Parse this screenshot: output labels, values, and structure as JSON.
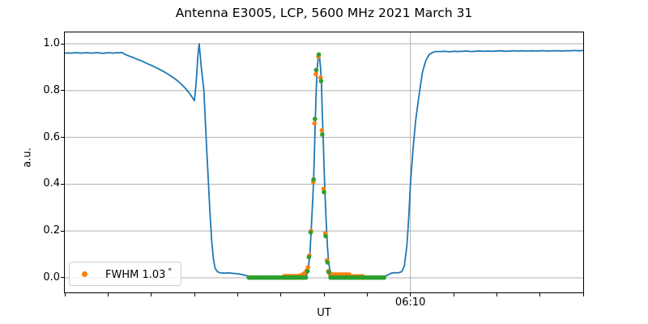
{
  "title": "Antenna E3005, LCP, 5600 MHz 2021 March 31",
  "xlabel": "UT",
  "ylabel": "a.u.",
  "legend": {
    "label": "FWHM 1.03",
    "degree": "°",
    "marker_color": "#ff7f0e"
  },
  "colors": {
    "signal_line": "#1f77b4",
    "measured_scatter": "#ff7f0e",
    "fit_scatter": "#2ca02c",
    "grid": "#b0b0b0",
    "spine": "#000000"
  },
  "chart_data": {
    "type": "line",
    "title": "Antenna E3005, LCP, 5600 MHz 2021 March 31",
    "xlabel": "UT",
    "ylabel": "a.u.",
    "x_axis": {
      "unit": "minutes after 05:30 UT",
      "range": [
        0,
        60
      ],
      "minor_tick_step": 5,
      "major_ticks": [
        {
          "x": 40,
          "label": "06:10"
        }
      ],
      "grid_on_major_only": true
    },
    "y_axis": {
      "ticks": [
        0.0,
        0.2,
        0.4,
        0.6,
        0.8,
        1.0
      ],
      "range": [
        -0.0625,
        1.0486
      ],
      "grid": true
    },
    "series": [
      {
        "name": "signal",
        "type": "line",
        "color": "#1f77b4",
        "width": 1.8,
        "points": [
          [
            0,
            0.96
          ],
          [
            0.4,
            0.961
          ],
          [
            0.8,
            0.96
          ],
          [
            1.2,
            0.962
          ],
          [
            1.6,
            0.961
          ],
          [
            2.0,
            0.96
          ],
          [
            2.4,
            0.962
          ],
          [
            2.8,
            0.961
          ],
          [
            3.2,
            0.96
          ],
          [
            3.6,
            0.962
          ],
          [
            4.0,
            0.961
          ],
          [
            4.4,
            0.959
          ],
          [
            4.8,
            0.961
          ],
          [
            5.2,
            0.962
          ],
          [
            5.6,
            0.96
          ],
          [
            6.0,
            0.962
          ],
          [
            6.3,
            0.961
          ],
          [
            6.6,
            0.963
          ],
          [
            7.0,
            0.954
          ],
          [
            7.5,
            0.947
          ],
          [
            8.0,
            0.94
          ],
          [
            8.5,
            0.932
          ],
          [
            9.0,
            0.925
          ],
          [
            9.5,
            0.916
          ],
          [
            10.0,
            0.908
          ],
          [
            10.5,
            0.899
          ],
          [
            11.0,
            0.89
          ],
          [
            11.5,
            0.88
          ],
          [
            12.0,
            0.869
          ],
          [
            12.5,
            0.857
          ],
          [
            13.0,
            0.843
          ],
          [
            13.5,
            0.827
          ],
          [
            14.0,
            0.808
          ],
          [
            14.5,
            0.785
          ],
          [
            15.0,
            0.757
          ],
          [
            15.2,
            0.83
          ],
          [
            15.4,
            0.95
          ],
          [
            15.55,
            1.0
          ],
          [
            15.8,
            0.9
          ],
          [
            16.1,
            0.8
          ],
          [
            16.4,
            0.57
          ],
          [
            16.6,
            0.42
          ],
          [
            16.8,
            0.28
          ],
          [
            17.0,
            0.16
          ],
          [
            17.2,
            0.08
          ],
          [
            17.4,
            0.04
          ],
          [
            17.7,
            0.025
          ],
          [
            18.0,
            0.021
          ],
          [
            18.5,
            0.02
          ],
          [
            19.0,
            0.021
          ],
          [
            19.5,
            0.019
          ],
          [
            20.0,
            0.017
          ],
          [
            20.5,
            0.014
          ],
          [
            21.0,
            0.009
          ],
          [
            21.4,
            0.005
          ],
          [
            22.0,
            0.004
          ],
          [
            23.0,
            0.004
          ],
          [
            24.0,
            0.004
          ],
          [
            25.0,
            0.004
          ],
          [
            26.0,
            0.005
          ],
          [
            27.0,
            0.005
          ],
          [
            27.6,
            0.007
          ],
          [
            28.0,
            0.012
          ],
          [
            28.2,
            0.05
          ],
          [
            28.35,
            0.09
          ],
          [
            28.5,
            0.19
          ],
          [
            28.65,
            0.3
          ],
          [
            28.8,
            0.42
          ],
          [
            28.9,
            0.55
          ],
          [
            29.0,
            0.68
          ],
          [
            29.1,
            0.8
          ],
          [
            29.2,
            0.89
          ],
          [
            29.35,
            0.95
          ],
          [
            29.45,
            0.955
          ],
          [
            29.6,
            0.9
          ],
          [
            29.7,
            0.84
          ],
          [
            29.8,
            0.7
          ],
          [
            29.9,
            0.61
          ],
          [
            30.0,
            0.48
          ],
          [
            30.1,
            0.37
          ],
          [
            30.25,
            0.24
          ],
          [
            30.4,
            0.13
          ],
          [
            30.55,
            0.06
          ],
          [
            30.7,
            0.03
          ],
          [
            30.9,
            0.015
          ],
          [
            31.5,
            0.01
          ],
          [
            32.5,
            0.008
          ],
          [
            33.5,
            0.007
          ],
          [
            34.5,
            0.006
          ],
          [
            35.5,
            0.005
          ],
          [
            36.5,
            0.005
          ],
          [
            37.0,
            0.006
          ],
          [
            37.4,
            0.012
          ],
          [
            37.8,
            0.02
          ],
          [
            38.2,
            0.022
          ],
          [
            38.6,
            0.021
          ],
          [
            39.0,
            0.026
          ],
          [
            39.3,
            0.05
          ],
          [
            39.6,
            0.14
          ],
          [
            39.8,
            0.25
          ],
          [
            40.0,
            0.4
          ],
          [
            40.3,
            0.55
          ],
          [
            40.6,
            0.67
          ],
          [
            41.0,
            0.78
          ],
          [
            41.4,
            0.88
          ],
          [
            41.8,
            0.93
          ],
          [
            42.2,
            0.955
          ],
          [
            42.6,
            0.963
          ],
          [
            42.9,
            0.967
          ],
          [
            43.5,
            0.967
          ],
          [
            44.0,
            0.968
          ],
          [
            44.5,
            0.966
          ],
          [
            45.0,
            0.968
          ],
          [
            45.5,
            0.967
          ],
          [
            46.0,
            0.968
          ],
          [
            46.5,
            0.969
          ],
          [
            47.0,
            0.967
          ],
          [
            47.5,
            0.968
          ],
          [
            48.0,
            0.969
          ],
          [
            48.5,
            0.968
          ],
          [
            49.0,
            0.969
          ],
          [
            49.5,
            0.968
          ],
          [
            50.0,
            0.969
          ],
          [
            50.5,
            0.97
          ],
          [
            51.0,
            0.968
          ],
          [
            51.5,
            0.969
          ],
          [
            52.0,
            0.97
          ],
          [
            52.5,
            0.969
          ],
          [
            53.0,
            0.97
          ],
          [
            53.5,
            0.969
          ],
          [
            54.0,
            0.97
          ],
          [
            54.5,
            0.969
          ],
          [
            55.0,
            0.97
          ],
          [
            55.5,
            0.97
          ],
          [
            56.0,
            0.969
          ],
          [
            56.5,
            0.97
          ],
          [
            57.0,
            0.97
          ],
          [
            57.5,
            0.969
          ],
          [
            58.0,
            0.97
          ],
          [
            58.5,
            0.97
          ],
          [
            59.0,
            0.971
          ],
          [
            59.5,
            0.97
          ],
          [
            60.0,
            0.971
          ]
        ]
      },
      {
        "name": "measured (FWHM 1.03 deg)",
        "type": "scatter",
        "color": "#ff7f0e",
        "radius": 2.8,
        "in_legend": true,
        "bands": [
          {
            "from": 25.4,
            "to": 27.2,
            "step": 0.2,
            "value": 0.007
          },
          {
            "from": 30.7,
            "to": 32.9,
            "step": 0.2,
            "value": 0.014
          },
          {
            "from": 33.1,
            "to": 34.5,
            "step": 0.2,
            "value": 0.006
          }
        ],
        "points": [
          [
            27.4,
            0.012
          ],
          [
            27.6,
            0.015
          ],
          [
            27.8,
            0.021
          ],
          [
            28.0,
            0.032
          ],
          [
            28.15,
            0.045
          ],
          [
            28.3,
            0.095
          ],
          [
            28.5,
            0.2
          ],
          [
            28.75,
            0.41
          ],
          [
            28.9,
            0.66
          ],
          [
            29.05,
            0.87
          ],
          [
            29.35,
            0.945
          ],
          [
            29.6,
            0.855
          ],
          [
            29.75,
            0.63
          ],
          [
            29.95,
            0.38
          ],
          [
            30.15,
            0.19
          ],
          [
            30.35,
            0.075
          ],
          [
            30.5,
            0.028
          ]
        ]
      },
      {
        "name": "gaussian fit samples",
        "type": "scatter",
        "color": "#2ca02c",
        "radius": 2.8,
        "in_legend": false,
        "bands": [
          {
            "from": 21.3,
            "to": 27.95,
            "step": 0.2,
            "value": 0.001
          },
          {
            "from": 30.75,
            "to": 37.0,
            "step": 0.2,
            "value": 0.001
          }
        ],
        "points": [
          [
            28.1,
            0.028
          ],
          [
            28.25,
            0.088
          ],
          [
            28.45,
            0.194
          ],
          [
            28.8,
            0.42
          ],
          [
            28.95,
            0.679
          ],
          [
            29.1,
            0.888
          ],
          [
            29.4,
            0.954
          ],
          [
            29.65,
            0.841
          ],
          [
            29.8,
            0.612
          ],
          [
            30.0,
            0.366
          ],
          [
            30.2,
            0.178
          ],
          [
            30.4,
            0.066
          ],
          [
            30.55,
            0.024
          ]
        ]
      }
    ]
  }
}
